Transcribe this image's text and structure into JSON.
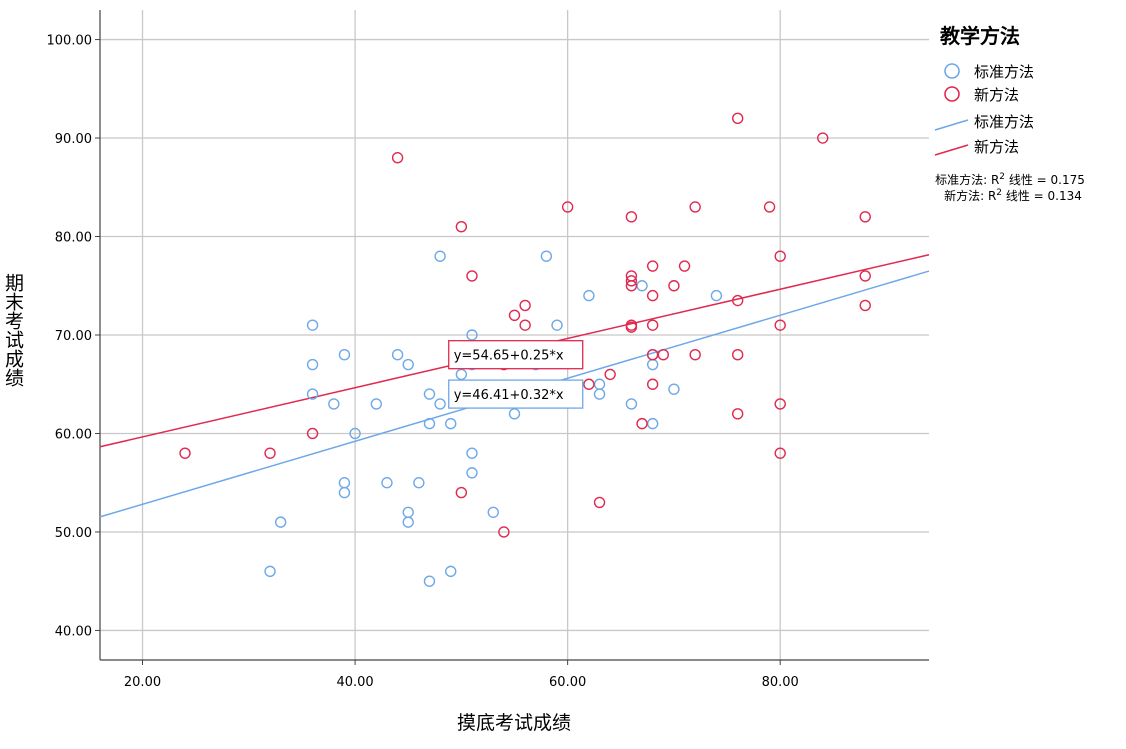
{
  "chart_data": {
    "type": "scatter",
    "xlabel": "摸底考试成绩",
    "ylabel": "期末考试成绩",
    "xlim": [
      16,
      94
    ],
    "ylim": [
      37,
      103
    ],
    "xticks": [
      "20.00",
      "40.00",
      "60.00",
      "80.00"
    ],
    "yticks": [
      "40.00",
      "50.00",
      "60.00",
      "70.00",
      "80.00",
      "90.00",
      "100.00"
    ],
    "grid": true,
    "legend": {
      "title": "教学方法",
      "placement": "right",
      "markers": [
        "标准方法",
        "新方法"
      ],
      "lines": [
        "标准方法",
        "新方法"
      ]
    },
    "r2_notes": [
      {
        "prefix": "标准方法: R",
        "sup": "2",
        "suffix": " 线性 = 0.175"
      },
      {
        "prefix": "新方法: R",
        "sup": "2",
        "suffix": " 线性 = 0.134"
      }
    ],
    "series": [
      {
        "name": "标准方法",
        "color": "#6fa8e8",
        "equation": "y=46.41+0.32*x",
        "intercept": 46.41,
        "slope": 0.32,
        "label_at": [
          49,
          64
        ],
        "points": [
          [
            32,
            46
          ],
          [
            33,
            51
          ],
          [
            36,
            71
          ],
          [
            36,
            67
          ],
          [
            36,
            64
          ],
          [
            38,
            63
          ],
          [
            39,
            68
          ],
          [
            39,
            55
          ],
          [
            39,
            54
          ],
          [
            40,
            60
          ],
          [
            42,
            63
          ],
          [
            43,
            55
          ],
          [
            44,
            68
          ],
          [
            45,
            67
          ],
          [
            45,
            52
          ],
          [
            45,
            51
          ],
          [
            46,
            55
          ],
          [
            47,
            64
          ],
          [
            47,
            61
          ],
          [
            47,
            45
          ],
          [
            48,
            78
          ],
          [
            48,
            63
          ],
          [
            49,
            61
          ],
          [
            49,
            46
          ],
          [
            50,
            66
          ],
          [
            51,
            70
          ],
          [
            51,
            67
          ],
          [
            51,
            58
          ],
          [
            51,
            56
          ],
          [
            53,
            52
          ],
          [
            55,
            62
          ],
          [
            57,
            67
          ],
          [
            58,
            78
          ],
          [
            59,
            71
          ],
          [
            62,
            74
          ],
          [
            63,
            65
          ],
          [
            63,
            64
          ],
          [
            66,
            63
          ],
          [
            67,
            75
          ],
          [
            68,
            68
          ],
          [
            68,
            67
          ],
          [
            68,
            61
          ],
          [
            70,
            64.5
          ],
          [
            74,
            74
          ]
        ]
      },
      {
        "name": "新方法",
        "color": "#e0294f",
        "equation": "y=54.65+0.25*x",
        "intercept": 54.65,
        "slope": 0.25,
        "label_at": [
          49,
          68
        ],
        "points": [
          [
            24,
            58
          ],
          [
            32,
            58
          ],
          [
            36,
            60
          ],
          [
            44,
            88
          ],
          [
            50,
            81
          ],
          [
            50,
            54
          ],
          [
            51,
            76
          ],
          [
            54,
            67
          ],
          [
            54,
            50
          ],
          [
            55,
            72
          ],
          [
            56,
            73
          ],
          [
            56,
            71
          ],
          [
            60,
            83
          ],
          [
            62,
            65
          ],
          [
            63,
            53
          ],
          [
            64,
            66
          ],
          [
            66,
            82
          ],
          [
            66,
            76
          ],
          [
            66,
            75.5
          ],
          [
            66,
            75
          ],
          [
            66,
            71
          ],
          [
            66,
            70.8
          ],
          [
            67,
            61
          ],
          [
            68,
            77
          ],
          [
            68,
            74
          ],
          [
            68,
            71
          ],
          [
            68,
            68
          ],
          [
            68,
            65
          ],
          [
            69,
            68
          ],
          [
            70,
            75
          ],
          [
            71,
            77
          ],
          [
            72,
            83
          ],
          [
            72,
            68
          ],
          [
            76,
            92
          ],
          [
            76,
            73.5
          ],
          [
            76,
            68
          ],
          [
            76,
            62
          ],
          [
            79,
            83
          ],
          [
            80,
            78
          ],
          [
            80,
            71
          ],
          [
            80,
            63
          ],
          [
            80,
            58
          ],
          [
            84,
            90
          ],
          [
            88,
            82
          ],
          [
            88,
            76
          ],
          [
            88,
            73
          ]
        ]
      }
    ]
  }
}
